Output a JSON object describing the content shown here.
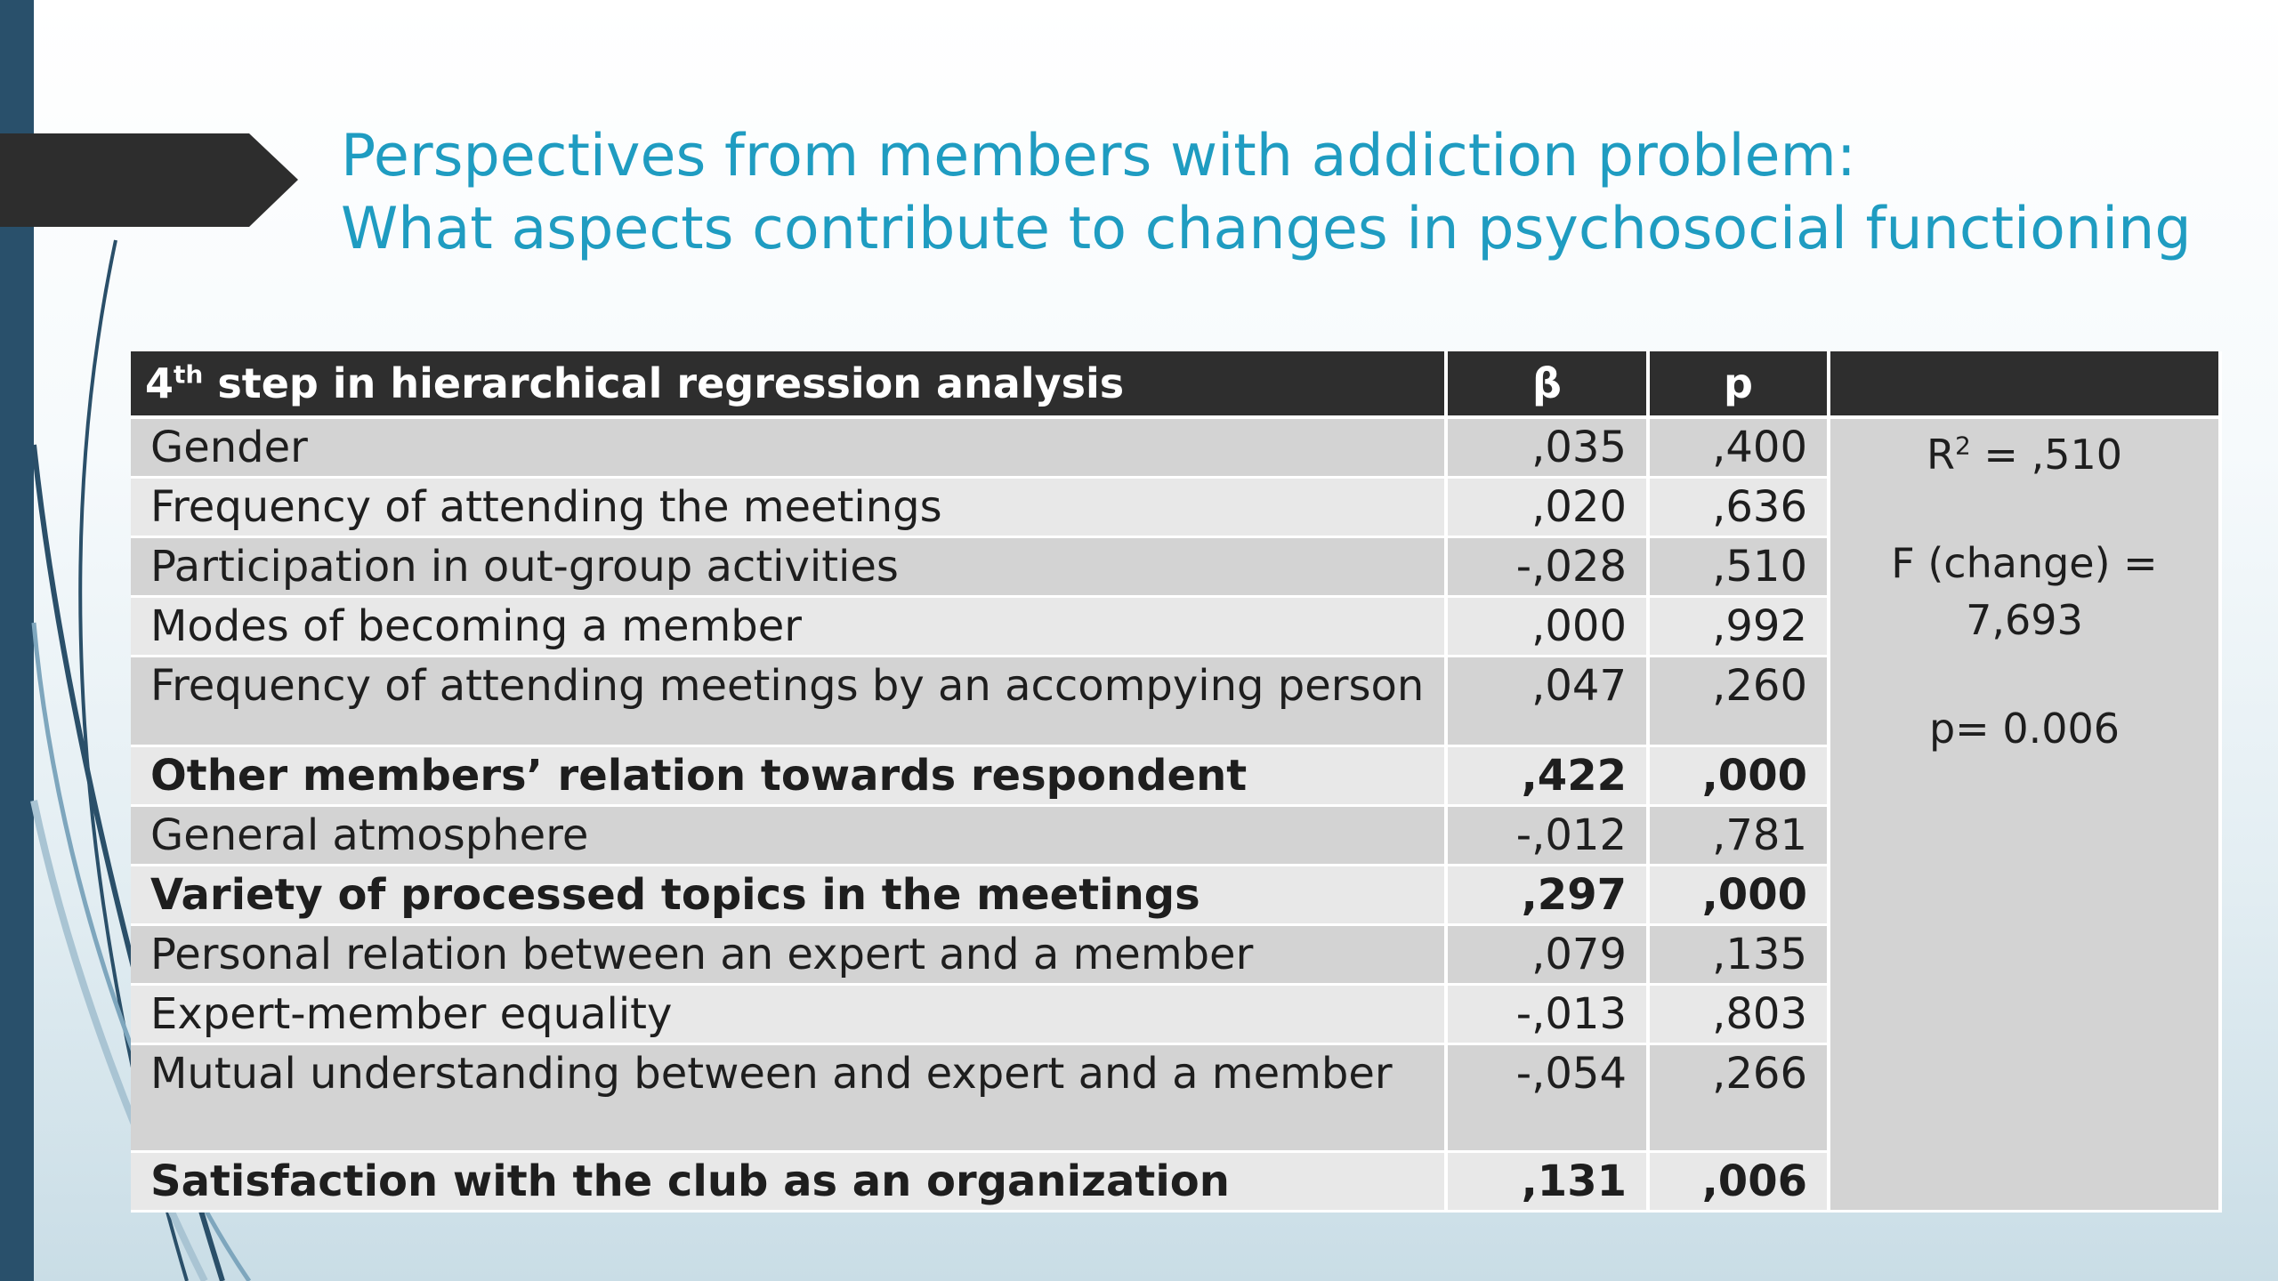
{
  "slide": {
    "title_line1": "Perspectives from members with addiction problem:",
    "title_line2": "What aspects contribute to changes in psychosocial functioning"
  },
  "table": {
    "header": {
      "label": "step in hierarchical regression analysis",
      "label_step_number": "4",
      "label_step_suffix": "th",
      "beta": "β",
      "p": "p",
      "summary": ""
    },
    "rows": [
      {
        "label": "Gender",
        "beta": ",035",
        "p": ",400",
        "bold": false
      },
      {
        "label": "Frequency of attending the meetings",
        "beta": ",020",
        "p": ",636",
        "bold": false
      },
      {
        "label": "Participation in out-group activities",
        "beta": "-,028",
        "p": ",510",
        "bold": false
      },
      {
        "label": "Modes of becoming a member",
        "beta": ",000",
        "p": ",992",
        "bold": false
      },
      {
        "label": "Frequency of attending meetings by an accompying person",
        "beta": ",047",
        "p": ",260",
        "bold": false
      },
      {
        "label": "Other members’ relation towards respondent",
        "beta": ",422",
        "p": ",000",
        "bold": true
      },
      {
        "label": "General atmosphere",
        "beta": "-,012",
        "p": ",781",
        "bold": false
      },
      {
        "label": "Variety of processed topics in the meetings",
        "beta": ",297",
        "p": ",000",
        "bold": true
      },
      {
        "label": "Personal relation between an expert and a member",
        "beta": ",079",
        "p": ",135",
        "bold": false
      },
      {
        "label": "Expert-member equality",
        "beta": "-,013",
        "p": ",803",
        "bold": false
      },
      {
        "label": "Mutual understanding between and expert and a member",
        "beta": "-,054",
        "p": ",266",
        "bold": false
      },
      {
        "label": "Satisfaction with the club as an organization",
        "beta": ",131",
        "p": ",006",
        "bold": true
      }
    ],
    "summary": {
      "r2_prefix": "R",
      "r2_exp": "2",
      "r2_value": " = ,510",
      "f_label": "F (change) =",
      "f_value": "7,693",
      "p_value": "p= 0.006"
    }
  }
}
